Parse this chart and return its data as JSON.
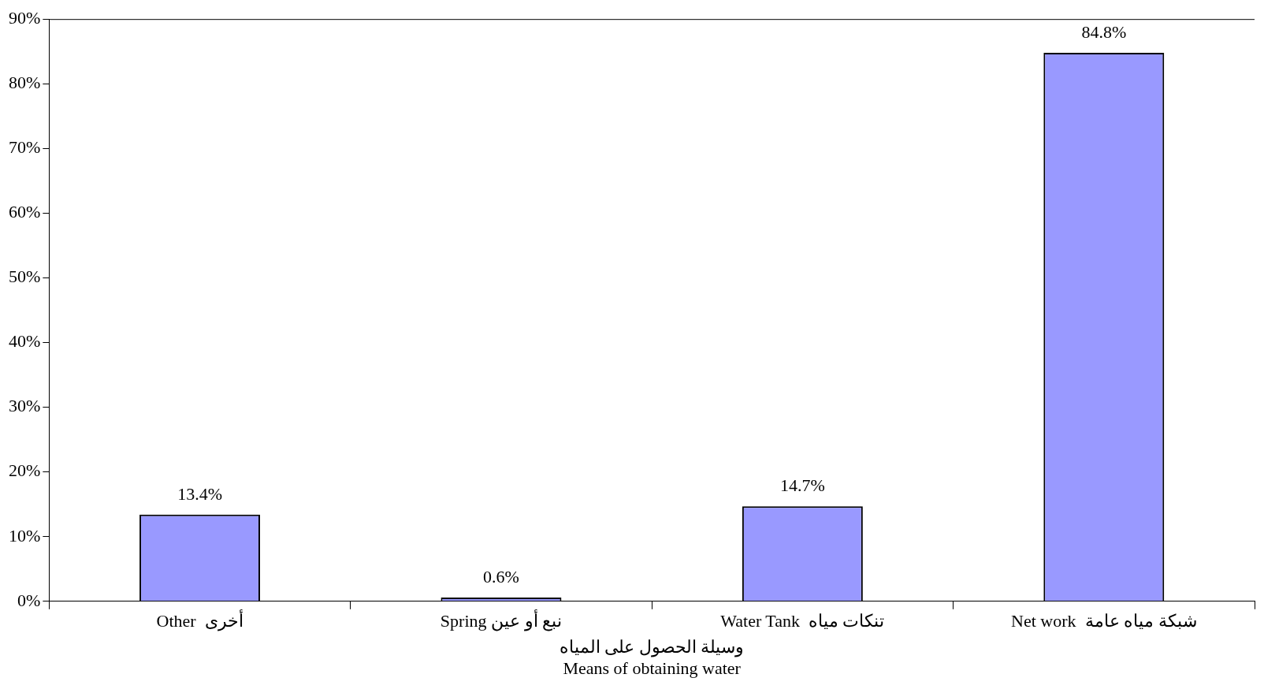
{
  "chart_data": {
    "type": "bar",
    "categories": [
      "Other  أخرى",
      "Spring نبع أو عين",
      "Water Tank  تنكات مياه",
      "Net work  شبكة مياه عامة"
    ],
    "values": [
      13.4,
      0.6,
      14.7,
      84.8
    ],
    "value_labels": [
      "13.4%",
      "0.6%",
      "14.7%",
      "84.8%"
    ],
    "color": "#9999ff",
    "xlabel": "وسيلة الحصول على المياه\nMeans of obtaining water",
    "ylim": [
      0,
      90
    ],
    "yticks": [
      {
        "value": 0,
        "label": "0%"
      },
      {
        "value": 10,
        "label": "10%"
      },
      {
        "value": 20,
        "label": "20%"
      },
      {
        "value": 30,
        "label": "30%"
      },
      {
        "value": 40,
        "label": "40%"
      },
      {
        "value": 50,
        "label": "50%"
      },
      {
        "value": 60,
        "label": "60%"
      },
      {
        "value": 70,
        "label": "70%"
      },
      {
        "value": 80,
        "label": "80%"
      },
      {
        "value": 90,
        "label": "90%"
      }
    ],
    "legend": false
  }
}
